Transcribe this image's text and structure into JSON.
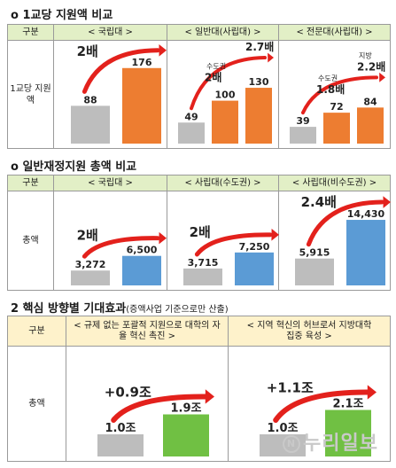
{
  "section1": {
    "title": "o  1교당 지원액 비교",
    "header_label": "구분",
    "row_label": "1교당 지원액",
    "columns": [
      "< 국립대 >",
      "< 일반대(사립대) >",
      "< 전문대(사립대) >"
    ]
  },
  "section2": {
    "title": "o  일반재정지원 총액 비교",
    "header_label": "구분",
    "row_label": "총액",
    "columns": [
      "< 국립대 >",
      "< 사립대(수도권) >",
      "< 사립대(비수도권) >"
    ]
  },
  "section3": {
    "title": "2  핵심 방향별 기대효과",
    "note": "(증액사업 기준으로만 산출)",
    "header_label": "구분",
    "row_label": "총액",
    "columns": [
      "< 규제 없는 포괄적 지원으로 대학의 자율 혁신 촉진 >",
      "< 지역 혁신의 허브로서 지방대학 집중 육성 >"
    ]
  },
  "watermark": "누리일보",
  "chart_data": [
    {
      "type": "bar",
      "group": "국립대",
      "categories": [
        "before",
        "after"
      ],
      "values": [
        88,
        176
      ],
      "value_labels": [
        "88",
        "176"
      ],
      "colors": [
        "#bdbdbd",
        "#ed7d31"
      ],
      "annotation": "2배",
      "ylim": [
        0,
        190
      ]
    },
    {
      "type": "bar",
      "group": "일반대(사립대)",
      "categories": [
        "before",
        "수도권",
        "지방"
      ],
      "values": [
        49,
        100,
        130
      ],
      "value_labels": [
        "49",
        "100",
        "130"
      ],
      "colors": [
        "#bdbdbd",
        "#ed7d31",
        "#ed7d31"
      ],
      "annotations": [
        {
          "small": "수도권",
          "big": "2배"
        },
        {
          "small": "지방",
          "big": "2.7배"
        }
      ],
      "ylim": [
        0,
        190
      ]
    },
    {
      "type": "bar",
      "group": "전문대(사립대)",
      "categories": [
        "before",
        "수도권",
        "지방"
      ],
      "values": [
        39,
        72,
        84
      ],
      "value_labels": [
        "39",
        "72",
        "84"
      ],
      "colors": [
        "#bdbdbd",
        "#ed7d31",
        "#ed7d31"
      ],
      "annotations": [
        {
          "small": "수도권",
          "big": "1.8배"
        },
        {
          "small": "지방",
          "big": "2.2배"
        }
      ],
      "ylim": [
        0,
        190
      ]
    },
    {
      "type": "bar",
      "group": "국립대",
      "categories": [
        "before",
        "after"
      ],
      "values": [
        3272,
        6500
      ],
      "value_labels": [
        "3,272",
        "6,500"
      ],
      "colors": [
        "#bdbdbd",
        "#5b9bd5"
      ],
      "annotation": "2배",
      "ylim": [
        0,
        16000
      ]
    },
    {
      "type": "bar",
      "group": "사립대(수도권)",
      "categories": [
        "before",
        "after"
      ],
      "values": [
        3715,
        7250
      ],
      "value_labels": [
        "3,715",
        "7,250"
      ],
      "colors": [
        "#bdbdbd",
        "#5b9bd5"
      ],
      "annotation": "2배",
      "ylim": [
        0,
        16000
      ]
    },
    {
      "type": "bar",
      "group": "사립대(비수도권)",
      "categories": [
        "before",
        "after"
      ],
      "values": [
        5915,
        14430
      ],
      "value_labels": [
        "5,915",
        "14,430"
      ],
      "colors": [
        "#bdbdbd",
        "#5b9bd5"
      ],
      "annotation": "2.4배",
      "ylim": [
        0,
        16000
      ]
    },
    {
      "type": "bar",
      "group": "자율 혁신",
      "categories": [
        "before",
        "after"
      ],
      "values": [
        1.0,
        1.9
      ],
      "value_labels": [
        "1.0조",
        "1.9조"
      ],
      "colors": [
        "#bdbdbd",
        "#70c043"
      ],
      "annotation": "+0.9조",
      "ylim": [
        0,
        4
      ]
    },
    {
      "type": "bar",
      "group": "지방대학",
      "categories": [
        "before",
        "after"
      ],
      "values": [
        1.0,
        2.1
      ],
      "value_labels": [
        "1.0조",
        "2.1조"
      ],
      "colors": [
        "#bdbdbd",
        "#70c043"
      ],
      "annotation": "+1.1조",
      "ylim": [
        0,
        4
      ]
    }
  ]
}
